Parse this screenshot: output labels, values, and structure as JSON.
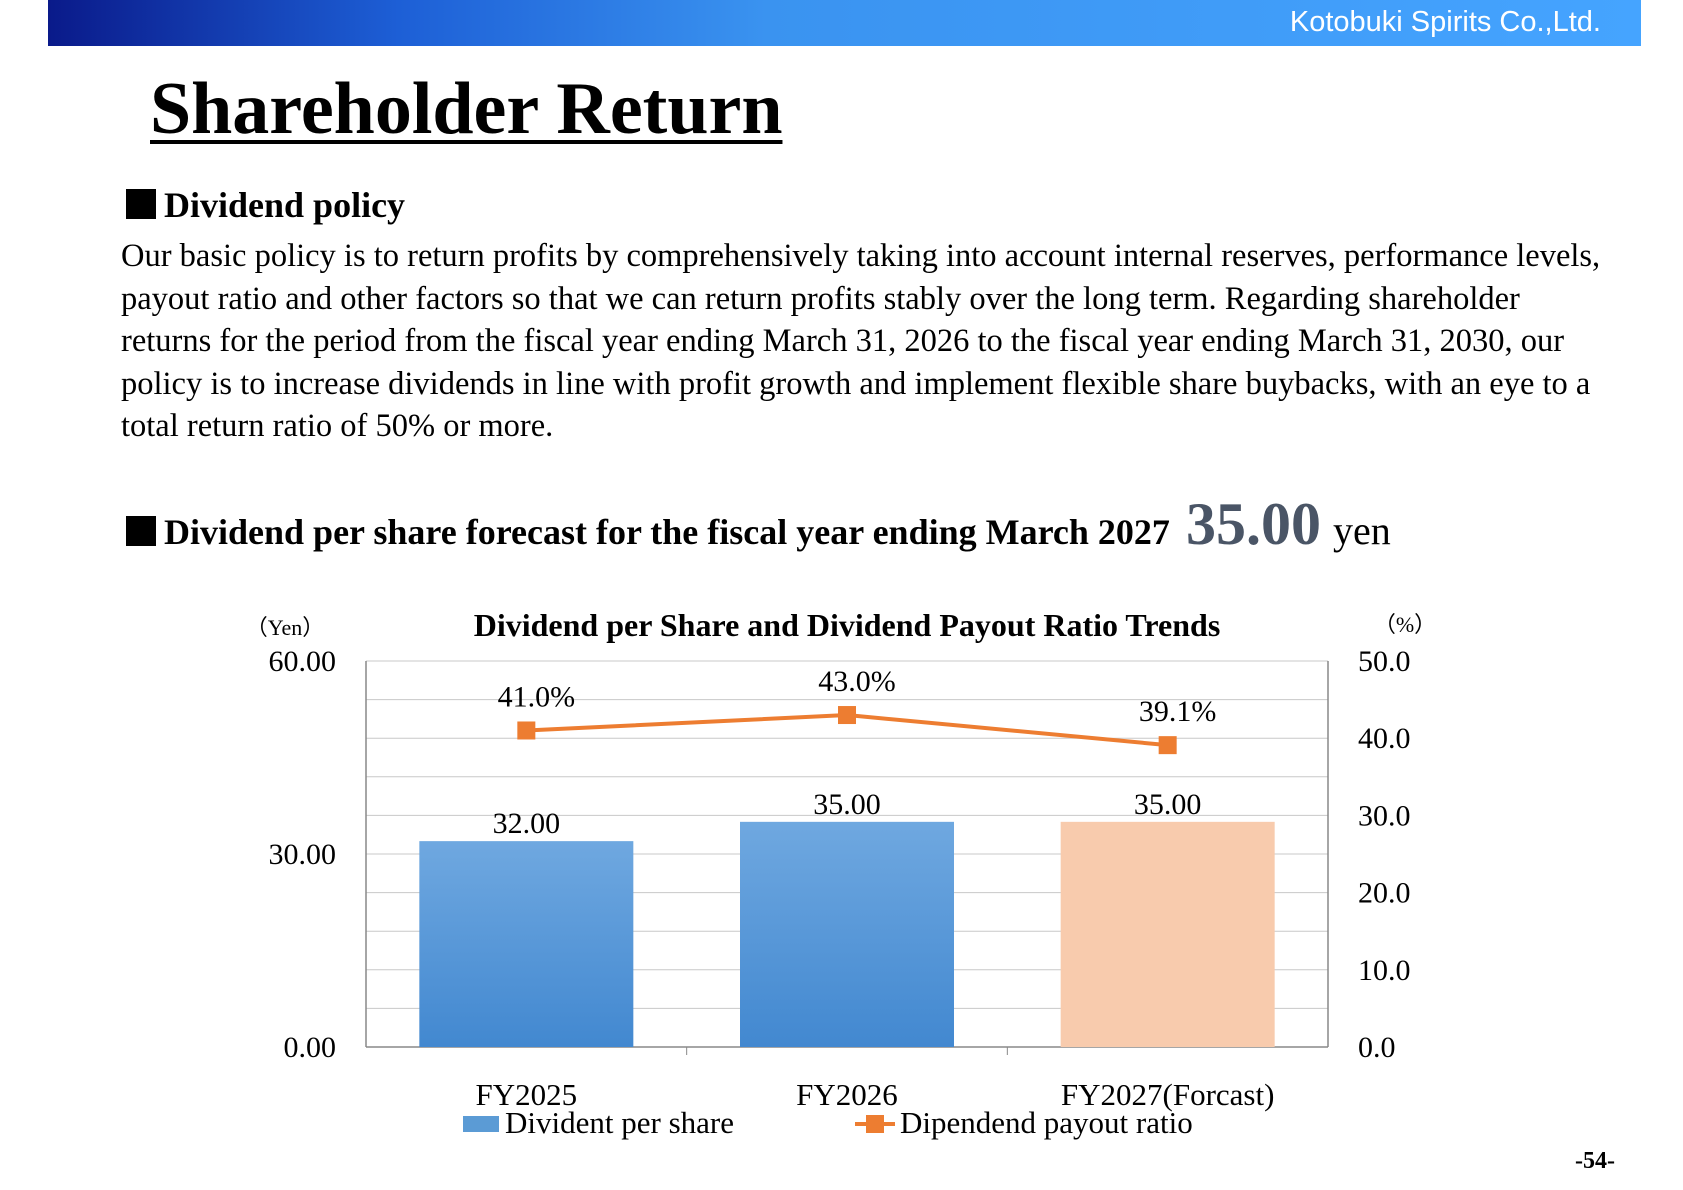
{
  "header": {
    "company": "Kotobuki Spirits Co.,Ltd."
  },
  "page": {
    "title": "Shareholder Return",
    "number": "-54-"
  },
  "policy": {
    "heading": "Dividend policy",
    "text": "Our basic policy is to return profits by comprehensively taking into account internal reserves, performance levels, payout ratio and other factors so that we can return profits stably over the long term. Regarding shareholder returns for the period from the fiscal year ending March 31, 2026 to the fiscal year ending March 31, 2030, our policy is to increase dividends in line with profit growth and implement flexible share buybacks, with an eye to a total return ratio of 50% or more."
  },
  "forecast": {
    "heading": "Dividend per share forecast for the fiscal year ending March 2027",
    "value": "35.00",
    "unit": "yen"
  },
  "colors": {
    "bar": "#5b9bd5",
    "bar_forecast": "#f8cbad",
    "line": "#ed7d31",
    "grid": "#c8c8c8"
  },
  "chart_data": {
    "type": "bar",
    "title": "Dividend per Share and Dividend Payout Ratio Trends",
    "ylabel_left": "（Yen）",
    "ylabel_right": "（%）",
    "categories": [
      "FY2025",
      "FY2026",
      "FY2027(Forcast)"
    ],
    "ylim_left": [
      0,
      60
    ],
    "yticks_left": [
      "0.00",
      "30.00",
      "60.00"
    ],
    "ylim_right": [
      0,
      50
    ],
    "yticks_right": [
      "0.0",
      "10.0",
      "20.0",
      "30.0",
      "40.0",
      "50.0"
    ],
    "grid": true,
    "series": [
      {
        "name": "Divident per share",
        "type": "bar",
        "axis": "left",
        "values": [
          32.0,
          35.0,
          35.0
        ],
        "labels": [
          "32.00",
          "35.00",
          "35.00"
        ]
      },
      {
        "name": "Dipendend payout ratio",
        "type": "line",
        "axis": "right",
        "values": [
          41.0,
          43.0,
          39.1
        ],
        "labels": [
          "41.0%",
          "43.0%",
          "39.1%"
        ]
      }
    ],
    "legend": "bottom"
  }
}
